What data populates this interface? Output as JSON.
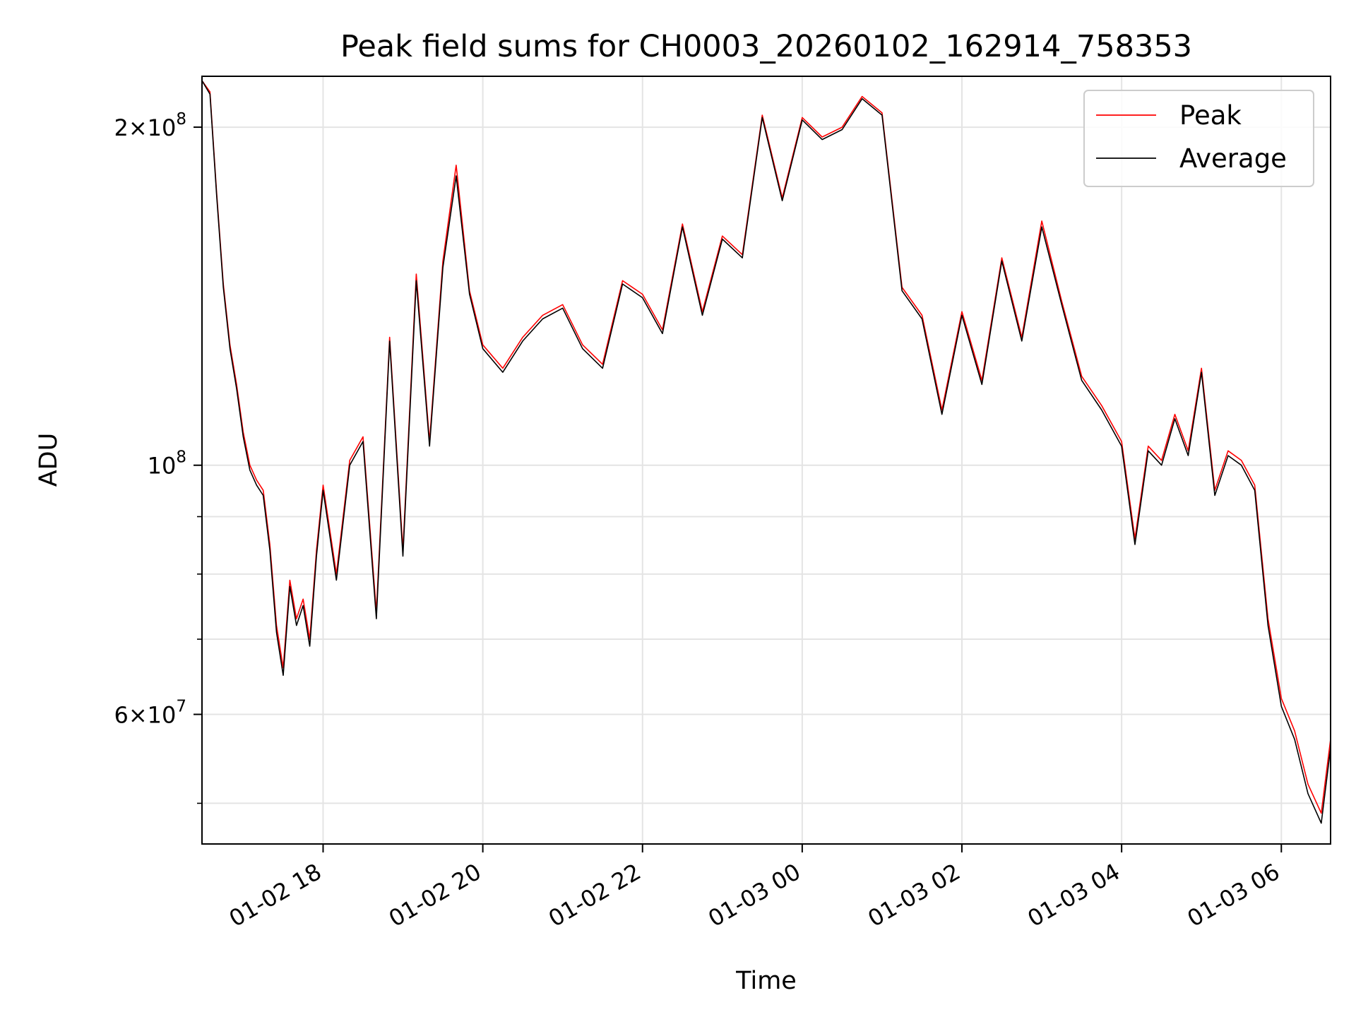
{
  "chart_data": {
    "type": "line",
    "title": "Peak field sums for CH0003_20260102_162914_758353",
    "xlabel": "Time",
    "ylabel": "ADU",
    "yscale": "log",
    "grid": true,
    "legend_position": "upper right",
    "xlim": [
      "2026-01-02T16:29",
      "2026-01-03T06:37"
    ],
    "ylim": [
      46000000,
      222000000
    ],
    "x_ticks": [
      {
        "value": "2026-01-02T18:00",
        "label": "01-02 18"
      },
      {
        "value": "2026-01-02T20:00",
        "label": "01-02 20"
      },
      {
        "value": "2026-01-02T22:00",
        "label": "01-02 22"
      },
      {
        "value": "2026-01-03T00:00",
        "label": "01-03 00"
      },
      {
        "value": "2026-01-03T02:00",
        "label": "01-03 02"
      },
      {
        "value": "2026-01-03T04:00",
        "label": "01-03 04"
      },
      {
        "value": "2026-01-03T06:00",
        "label": "01-03 06"
      }
    ],
    "y_major_ticks": [
      {
        "value": 200000000,
        "base": "2×10",
        "exp": "8"
      },
      {
        "value": 100000000,
        "base": "10",
        "exp": "8"
      },
      {
        "value": 60000000,
        "base": "6×10",
        "exp": "7"
      }
    ],
    "y_minor_ticks": [
      50000000,
      70000000,
      80000000,
      90000000
    ],
    "x": [
      "2026-01-02T16:29",
      "2026-01-02T16:35",
      "2026-01-02T16:40",
      "2026-01-02T16:45",
      "2026-01-02T16:50",
      "2026-01-02T16:55",
      "2026-01-02T17:00",
      "2026-01-02T17:05",
      "2026-01-02T17:10",
      "2026-01-02T17:15",
      "2026-01-02T17:20",
      "2026-01-02T17:25",
      "2026-01-02T17:30",
      "2026-01-02T17:35",
      "2026-01-02T17:40",
      "2026-01-02T17:45",
      "2026-01-02T17:50",
      "2026-01-02T17:55",
      "2026-01-02T18:00",
      "2026-01-02T18:10",
      "2026-01-02T18:20",
      "2026-01-02T18:30",
      "2026-01-02T18:40",
      "2026-01-02T18:50",
      "2026-01-02T19:00",
      "2026-01-02T19:10",
      "2026-01-02T19:20",
      "2026-01-02T19:30",
      "2026-01-02T19:40",
      "2026-01-02T19:50",
      "2026-01-02T20:00",
      "2026-01-02T20:15",
      "2026-01-02T20:30",
      "2026-01-02T20:45",
      "2026-01-02T21:00",
      "2026-01-02T21:15",
      "2026-01-02T21:30",
      "2026-01-02T21:45",
      "2026-01-02T22:00",
      "2026-01-02T22:15",
      "2026-01-02T22:30",
      "2026-01-02T22:45",
      "2026-01-02T23:00",
      "2026-01-02T23:15",
      "2026-01-02T23:30",
      "2026-01-02T23:45",
      "2026-01-03T00:00",
      "2026-01-03T00:15",
      "2026-01-03T00:30",
      "2026-01-03T00:45",
      "2026-01-03T01:00",
      "2026-01-03T01:15",
      "2026-01-03T01:30",
      "2026-01-03T01:45",
      "2026-01-03T02:00",
      "2026-01-03T02:15",
      "2026-01-03T02:30",
      "2026-01-03T02:45",
      "2026-01-03T03:00",
      "2026-01-03T03:15",
      "2026-01-03T03:30",
      "2026-01-03T03:45",
      "2026-01-03T04:00",
      "2026-01-03T04:10",
      "2026-01-03T04:20",
      "2026-01-03T04:30",
      "2026-01-03T04:40",
      "2026-01-03T04:50",
      "2026-01-03T05:00",
      "2026-01-03T05:10",
      "2026-01-03T05:20",
      "2026-01-03T05:30",
      "2026-01-03T05:40",
      "2026-01-03T05:50",
      "2026-01-03T06:00",
      "2026-01-03T06:10",
      "2026-01-03T06:20",
      "2026-01-03T06:30",
      "2026-01-03T06:37"
    ],
    "series": [
      {
        "name": "Peak",
        "color": "#ff0000",
        "values": [
          220000000,
          215000000,
          175000000,
          145000000,
          128000000,
          118000000,
          107000000,
          100000000,
          97000000,
          95000000,
          85000000,
          72000000,
          66000000,
          79000000,
          73000000,
          76000000,
          70000000,
          84000000,
          96000000,
          80000000,
          101000000,
          106000000,
          74000000,
          130000000,
          84000000,
          148000000,
          105000000,
          152000000,
          185000000,
          143000000,
          128000000,
          122000000,
          130000000,
          136000000,
          139000000,
          128000000,
          123000000,
          146000000,
          142000000,
          132000000,
          164000000,
          137000000,
          160000000,
          154000000,
          205000000,
          173000000,
          204000000,
          196000000,
          200000000,
          213000000,
          206000000,
          144000000,
          136000000,
          112000000,
          137000000,
          119000000,
          153000000,
          130000000,
          165000000,
          140000000,
          120000000,
          113000000,
          105000000,
          86000000,
          104000000,
          101000000,
          111000000,
          103000000,
          122000000,
          95000000,
          103000000,
          101000000,
          96000000,
          73000000,
          62000000,
          58000000,
          52000000,
          49000000,
          57000000
        ]
      },
      {
        "name": "Average",
        "color": "#000000",
        "values": [
          220000000,
          214000000,
          174000000,
          144000000,
          127000000,
          117000000,
          106000000,
          99000000,
          96000000,
          94000000,
          84000000,
          71000000,
          65000000,
          78000000,
          72000000,
          75000000,
          69000000,
          83000000,
          95000000,
          79000000,
          100000000,
          105000000,
          73000000,
          129000000,
          83000000,
          146000000,
          104000000,
          150000000,
          181000000,
          142000000,
          127000000,
          121000000,
          129000000,
          135000000,
          138000000,
          127000000,
          122000000,
          145000000,
          141000000,
          131000000,
          163000000,
          136000000,
          159000000,
          153000000,
          204000000,
          172000000,
          203000000,
          195000000,
          199000000,
          212000000,
          205000000,
          143000000,
          135000000,
          111000000,
          136000000,
          118000000,
          152000000,
          129000000,
          163000000,
          139000000,
          119000000,
          112000000,
          104000000,
          85000000,
          103000000,
          100000000,
          110000000,
          102000000,
          121000000,
          94000000,
          102000000,
          100000000,
          95000000,
          72000000,
          61000000,
          57000000,
          51000000,
          48000000,
          56000000
        ]
      }
    ]
  }
}
